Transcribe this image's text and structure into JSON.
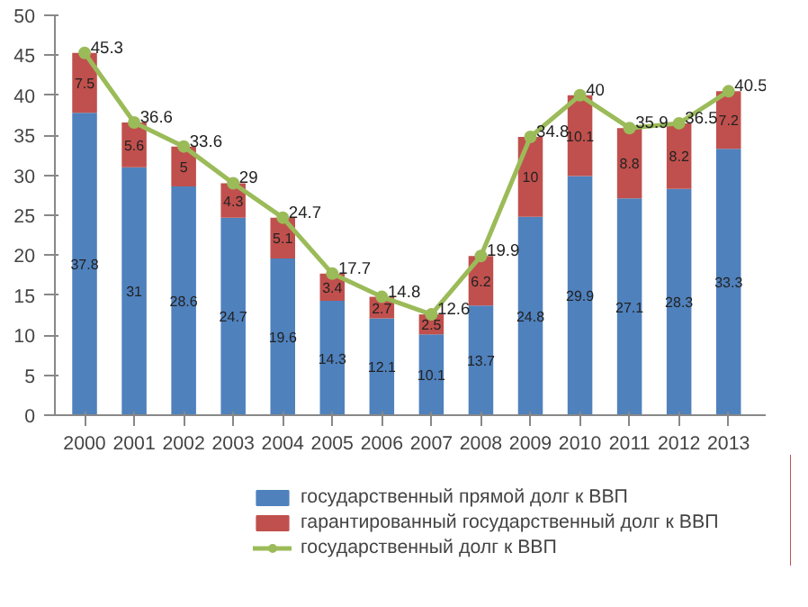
{
  "chart_data": {
    "type": "bar",
    "stacked": true,
    "categories": [
      "2000",
      "2001",
      "2002",
      "2003",
      "2004",
      "2005",
      "2006",
      "2007",
      "2008",
      "2009",
      "2010",
      "2011",
      "2012",
      "2013"
    ],
    "series": [
      {
        "name": "государственный прямой долг к ВВП",
        "color": "#4f81bd",
        "values": [
          37.8,
          31,
          28.6,
          24.7,
          19.6,
          14.3,
          12.1,
          10.1,
          13.7,
          24.8,
          29.9,
          27.1,
          28.3,
          33.3
        ]
      },
      {
        "name": "гарантированный государственный долг к ВВП",
        "color": "#c0504d",
        "values": [
          7.5,
          5.6,
          5,
          4.3,
          5.1,
          3.4,
          2.7,
          2.5,
          6.2,
          10,
          10.1,
          8.8,
          8.2,
          7.2
        ]
      },
      {
        "name": "государственный долг к ВВП",
        "color": "#9bbb59",
        "type": "line",
        "marker": "circle",
        "values": [
          45.3,
          36.6,
          33.6,
          29,
          24.7,
          17.7,
          14.8,
          12.6,
          19.9,
          34.8,
          40,
          35.9,
          36.5,
          40.5
        ]
      }
    ],
    "ylim": [
      0,
      50
    ],
    "yticks": [
      0,
      5,
      10,
      15,
      20,
      25,
      30,
      35,
      40,
      45,
      50
    ],
    "grid": false,
    "legend": "bottom",
    "data_labels": true
  }
}
